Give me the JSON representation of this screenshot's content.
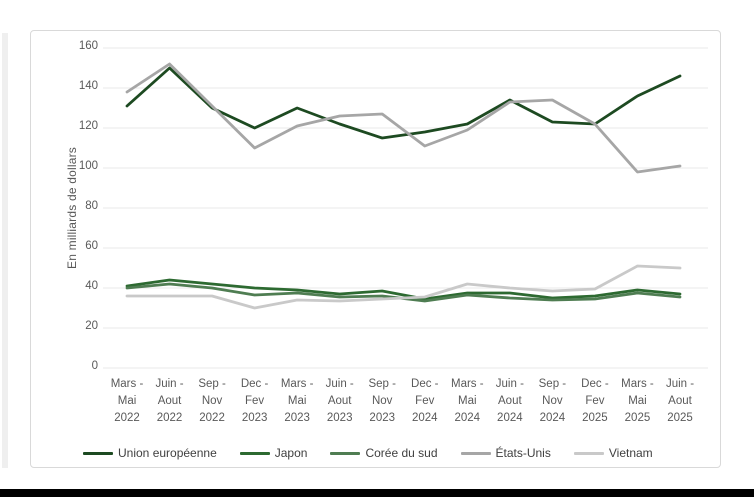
{
  "page": {
    "background": "#ffffff",
    "bottom_bar_color": "#000000",
    "axis_text_color": "#595959",
    "gridline_color": "#e8e8e8"
  },
  "chart_data": {
    "type": "line",
    "title": "",
    "xlabel": "",
    "ylabel": "En milliards de dollars",
    "ylim": [
      0,
      160
    ],
    "y_ticks": [
      0,
      20,
      40,
      60,
      80,
      100,
      120,
      140,
      160
    ],
    "grid": true,
    "legend_position": "bottom",
    "categories": [
      "Mars - Mai 2022",
      "Juin - Aout 2022",
      "Sep - Nov 2022",
      "Dec - Fev 2023",
      "Mars - Mai 2023",
      "Juin - Aout 2023",
      "Sep - Nov 2023",
      "Dec - Fev 2024",
      "Mars - Mai 2024",
      "Juin - Aout 2024",
      "Sep - Nov 2024",
      "Dec - Fev 2025",
      "Mars - Mai 2025",
      "Juin - Aout 2025"
    ],
    "category_lines": [
      [
        "Mars -",
        "Mai",
        "2022"
      ],
      [
        "Juin -",
        "Aout",
        "2022"
      ],
      [
        "Sep -",
        "Nov",
        "2022"
      ],
      [
        "Dec -",
        "Fev",
        "2023"
      ],
      [
        "Mars -",
        "Mai",
        "2023"
      ],
      [
        "Juin -",
        "Aout",
        "2023"
      ],
      [
        "Sep -",
        "Nov",
        "2023"
      ],
      [
        "Dec -",
        "Fev",
        "2024"
      ],
      [
        "Mars -",
        "Mai",
        "2024"
      ],
      [
        "Juin -",
        "Aout",
        "2024"
      ],
      [
        "Sep -",
        "Nov",
        "2024"
      ],
      [
        "Dec -",
        "Fev",
        "2025"
      ],
      [
        "Mars -",
        "Mai",
        "2025"
      ],
      [
        "Juin -",
        "Aout",
        "2025"
      ]
    ],
    "series": [
      {
        "name": "Union européenne",
        "color": "#1d4a21",
        "values": [
          131,
          150,
          130,
          120,
          130,
          122,
          115,
          118,
          122,
          134,
          123,
          122,
          136,
          146
        ]
      },
      {
        "name": "Japon",
        "color": "#2d6a31",
        "values": [
          41,
          44,
          42,
          40,
          39,
          37,
          38.5,
          34.5,
          37.5,
          37.5,
          35,
          36,
          39,
          37
        ]
      },
      {
        "name": "Corée du sud",
        "color": "#4f7d52",
        "values": [
          40,
          42,
          40,
          36.5,
          37.5,
          35.5,
          36,
          33.5,
          36.5,
          35,
          34,
          34.5,
          37.5,
          35.5
        ]
      },
      {
        "name": "États-Unis",
        "color": "#a6a6a6",
        "values": [
          138,
          152,
          131,
          110,
          121,
          126,
          127,
          111,
          119,
          133,
          134,
          122,
          98,
          101
        ]
      },
      {
        "name": "Vietnam",
        "color": "#c9c9c9",
        "values": [
          36,
          36,
          36,
          30,
          34,
          33.5,
          34.5,
          35.5,
          42,
          40,
          38.5,
          39.5,
          51,
          50
        ]
      }
    ]
  }
}
